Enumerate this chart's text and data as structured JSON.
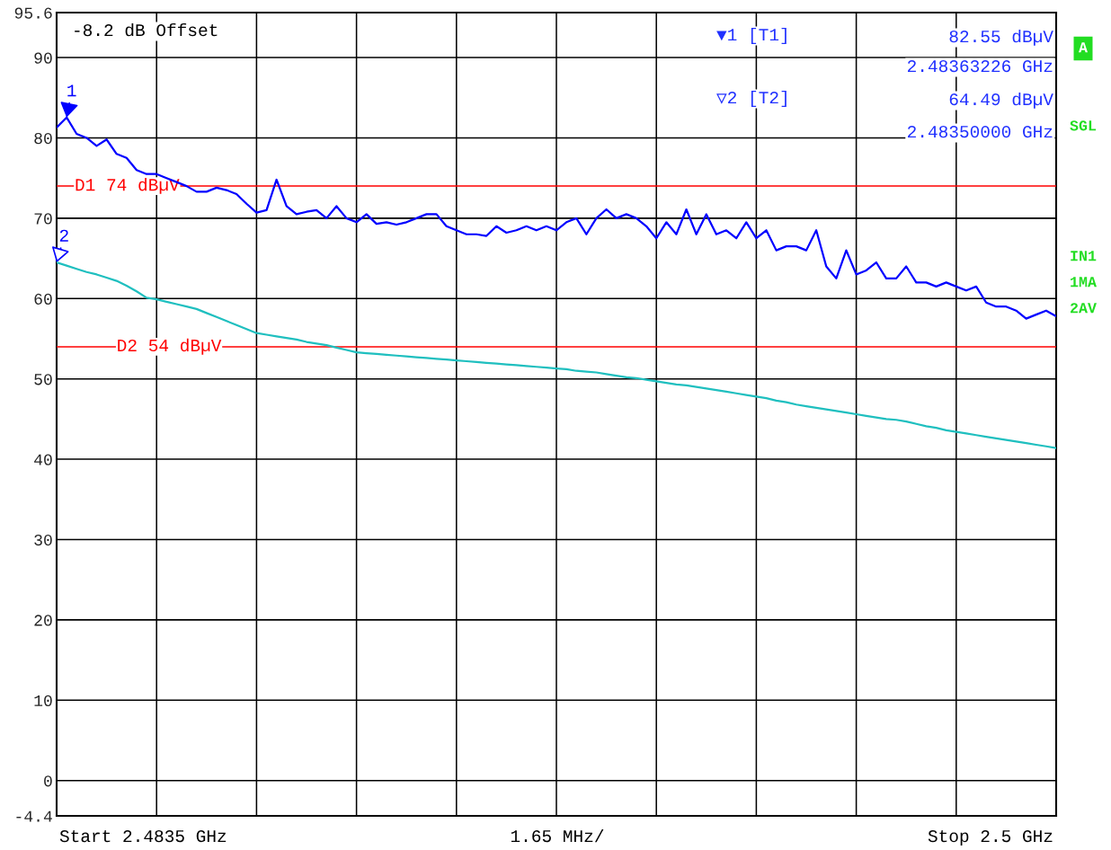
{
  "chart_data": {
    "type": "line",
    "categories": [
      null,
      null,
      null,
      null,
      null,
      null,
      null,
      null,
      null,
      null,
      null,
      null,
      null,
      null,
      null,
      null,
      null,
      null,
      null,
      null,
      null,
      null,
      null,
      null,
      null,
      null,
      null,
      null,
      null,
      null,
      null,
      null,
      null,
      null,
      null,
      null,
      null,
      null,
      null,
      null,
      null,
      null,
      null,
      null,
      null,
      null,
      null,
      null,
      null,
      null,
      null,
      null,
      null,
      null,
      null,
      null,
      null,
      null,
      null,
      null,
      null,
      null,
      null,
      null,
      null,
      null,
      null,
      null,
      null,
      null,
      null,
      null,
      null,
      null,
      null,
      null,
      null,
      null,
      null,
      null,
      null,
      null,
      null,
      null,
      null,
      null,
      null,
      null,
      null,
      null,
      null,
      null,
      null,
      null,
      null,
      null,
      null,
      null,
      null,
      null,
      null
    ],
    "ylim": [
      -4.4,
      95.6
    ],
    "yticks": [
      95.6,
      90,
      80,
      70,
      60,
      50,
      40,
      30,
      20,
      10,
      0,
      -4.4
    ],
    "grid": true,
    "series": [
      {
        "color": "#0000ff",
        "values": [
          81.3,
          82.55,
          80.5,
          80.0,
          79.0,
          79.8,
          78.0,
          77.5,
          76.0,
          75.5,
          75.5,
          75.0,
          74.5,
          74.0,
          73.3,
          73.3,
          73.8,
          73.5,
          73.0,
          71.8,
          70.7,
          71.0,
          74.8,
          71.5,
          70.5,
          70.8,
          71.0,
          70.0,
          71.5,
          70.0,
          69.5,
          70.5,
          69.3,
          69.5,
          69.2,
          69.5,
          70.0,
          70.5,
          70.5,
          69.0,
          68.5,
          68.0,
          68.0,
          67.8,
          69.0,
          68.2,
          68.5,
          69.0,
          68.5,
          69.0,
          68.5,
          69.5,
          70.0,
          68.0,
          70.0,
          71.1,
          70.0,
          70.5,
          70.0,
          69.0,
          67.5,
          69.5,
          68.0,
          71.1,
          68.0,
          70.5,
          68.0,
          68.5,
          67.5,
          69.5,
          67.5,
          68.5,
          66.0,
          66.5,
          66.5,
          66.0,
          68.5,
          64.0,
          62.5,
          66.0,
          63.0,
          63.5,
          64.5,
          62.5,
          62.5,
          64.0,
          62.0,
          62.0,
          61.5,
          62.0,
          61.5,
          61.0,
          61.5,
          59.5,
          59.0,
          59.0,
          58.5,
          57.5,
          58.0,
          58.5,
          57.8
        ]
      },
      {
        "color": "#1fbfbf",
        "values": [
          64.49,
          64.1,
          63.7,
          63.3,
          63.0,
          62.6,
          62.2,
          61.6,
          60.9,
          60.1,
          59.9,
          59.6,
          59.3,
          59.0,
          58.7,
          58.2,
          57.7,
          57.2,
          56.7,
          56.2,
          55.7,
          55.5,
          55.3,
          55.1,
          54.9,
          54.6,
          54.4,
          54.2,
          53.9,
          53.6,
          53.3,
          53.2,
          53.1,
          53.0,
          52.9,
          52.8,
          52.7,
          52.6,
          52.5,
          52.4,
          52.3,
          52.2,
          52.1,
          52.0,
          51.9,
          51.8,
          51.7,
          51.6,
          51.5,
          51.4,
          51.3,
          51.2,
          51.0,
          50.9,
          50.8,
          50.6,
          50.4,
          50.2,
          50.1,
          49.9,
          49.7,
          49.5,
          49.3,
          49.2,
          49.0,
          48.8,
          48.6,
          48.4,
          48.2,
          48.0,
          47.8,
          47.6,
          47.3,
          47.1,
          46.8,
          46.6,
          46.4,
          46.2,
          46.0,
          45.8,
          45.6,
          45.4,
          45.2,
          45.0,
          44.9,
          44.7,
          44.4,
          44.1,
          43.9,
          43.6,
          43.4,
          43.2,
          43.0,
          42.8,
          42.6,
          42.4,
          42.2,
          42.0,
          41.8,
          41.6,
          41.4
        ]
      }
    ],
    "ref_lines": [
      {
        "axis": "y",
        "value": 74,
        "label": "D1 74 dBµV",
        "color": "#ff0000"
      },
      {
        "axis": "y",
        "value": 54,
        "label": "D2 54 dBµV",
        "color": "#ff0000"
      }
    ],
    "annotations": [
      "-8.2 dB Offset",
      "▼1 [T1]",
      "82.55 dBµV",
      "2.48363226 GHz",
      "▽2 [T2]",
      "64.49 dBµV",
      "2.48350000 GHz",
      "A",
      "SGL",
      "IN1",
      "1MA",
      "2AV",
      "Start 2.4835 GHz",
      "1.65 MHz/",
      "Stop 2.5 GHz",
      {
        "text": "1",
        "y": 82.55
      },
      {
        "text": "2",
        "y": 64.49
      }
    ]
  }
}
